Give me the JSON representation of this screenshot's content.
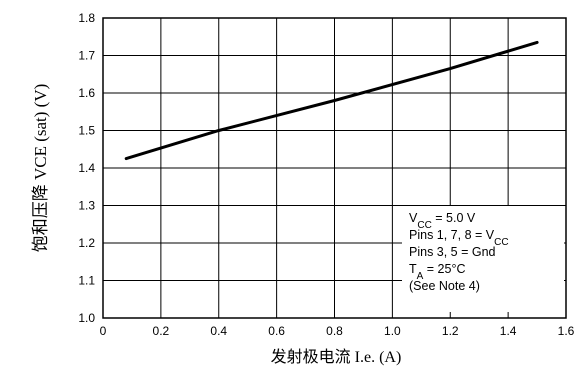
{
  "chart_data": {
    "type": "line",
    "x_axis": {
      "label": "发射极电流  I.e. (A)",
      "range": [
        0,
        1.6
      ],
      "ticks": [
        0,
        0.2,
        0.4,
        0.6,
        0.8,
        1.0,
        1.2,
        1.4,
        1.6
      ],
      "tick_labels": [
        "0",
        "0.2",
        "0.4",
        "0.6",
        "0.8",
        "1.0",
        "1.2",
        "1.4",
        "1.6"
      ]
    },
    "y_axis": {
      "label": "饱和压降  VCE (sat)   (V)",
      "range": [
        1.0,
        1.8
      ],
      "ticks": [
        1.0,
        1.1,
        1.2,
        1.3,
        1.4,
        1.5,
        1.6,
        1.7,
        1.8
      ],
      "tick_labels": [
        "1.0",
        "1.1",
        "1.2",
        "1.3",
        "1.4",
        "1.5",
        "1.6",
        "1.7",
        "1.8"
      ]
    },
    "grid": true,
    "series": [
      {
        "x": [
          0.08,
          0.4,
          0.8,
          1.2,
          1.5
        ],
        "y": [
          1.425,
          1.5,
          1.58,
          1.665,
          1.735
        ],
        "color": "#000000"
      }
    ],
    "annotations": [
      {
        "base": "V",
        "sub": "CC",
        "rest": " = 5.0 V"
      },
      {
        "pre": "Pins 1, 7, 8 = V",
        "sub": "CC"
      },
      {
        "pre": "Pins 3, 5 = Gnd"
      },
      {
        "base": "T",
        "sub": "A",
        "rest": " = 25°C"
      },
      {
        "pre": "(See Note 4)"
      }
    ],
    "annotation_position": "bottom-right"
  }
}
